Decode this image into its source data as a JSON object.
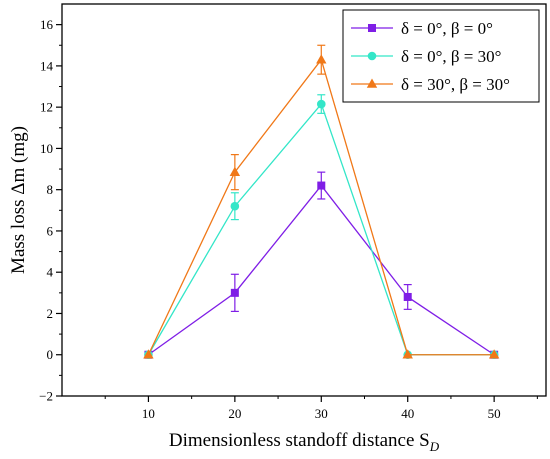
{
  "chart_data": {
    "type": "line",
    "xlabel": "Dimensionless standoff distance S",
    "xlabel_sub": "D",
    "ylabel": "Mass loss Δm (mg)",
    "x": [
      10,
      20,
      30,
      40,
      50
    ],
    "xlim": [
      0,
      56
    ],
    "ylim": [
      -2,
      17
    ],
    "x_ticks": [
      10,
      20,
      30,
      40,
      50
    ],
    "y_ticks": [
      -2,
      0,
      2,
      4,
      6,
      8,
      10,
      12,
      14,
      16
    ],
    "x_minor_ticks": [
      5,
      15,
      25,
      35,
      45,
      55
    ],
    "y_minor_ticks": [
      -1,
      1,
      3,
      5,
      7,
      9,
      11,
      13,
      15
    ],
    "grid": false,
    "legend_position": "top-right",
    "series": [
      {
        "name": "δ = 0°, β = 0°",
        "values": [
          0,
          3.0,
          8.2,
          2.8,
          0
        ],
        "errors": [
          0,
          0.9,
          0.65,
          0.6,
          0
        ],
        "color": "#7f1ee6",
        "marker": "square"
      },
      {
        "name": "δ = 0°, β = 30°",
        "values": [
          0,
          7.2,
          12.15,
          0,
          0
        ],
        "errors": [
          0,
          0.65,
          0.45,
          0,
          0
        ],
        "color": "#33e6c8",
        "marker": "circle"
      },
      {
        "name": "δ = 30°, β = 30°",
        "values": [
          0,
          8.85,
          14.3,
          0,
          0
        ],
        "errors": [
          0,
          0.85,
          0.7,
          0,
          0
        ],
        "color": "#f07818",
        "marker": "triangle"
      }
    ]
  }
}
